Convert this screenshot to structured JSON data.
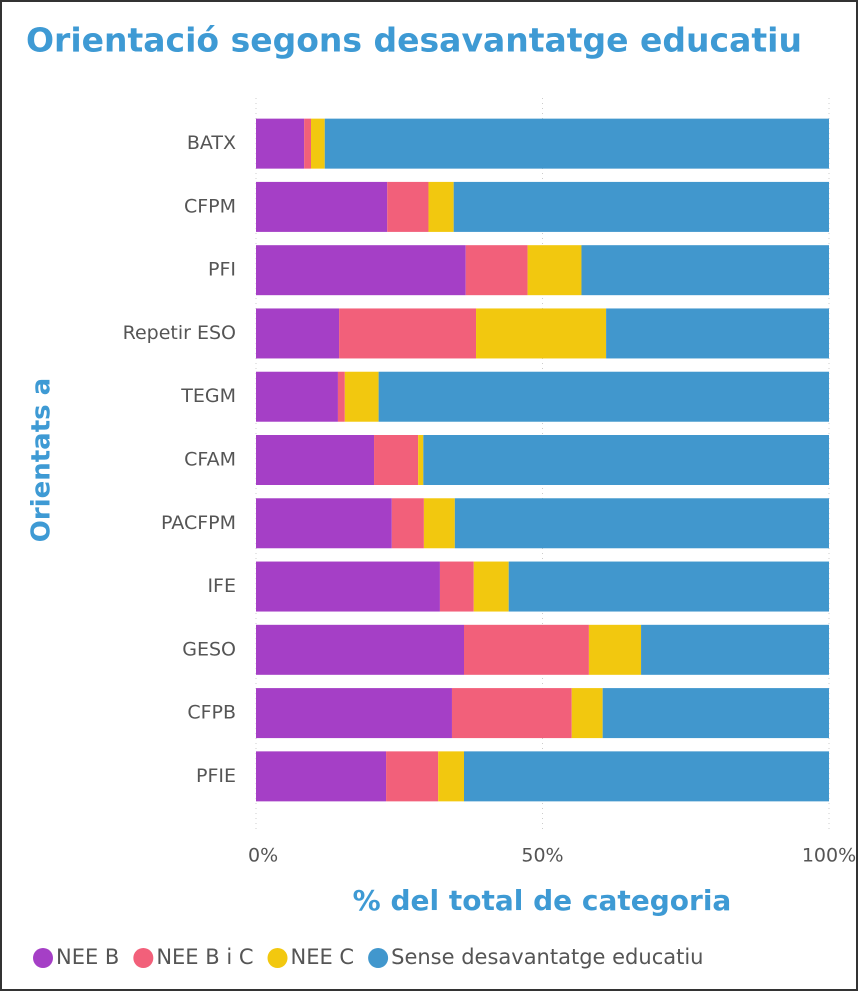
{
  "chart_data": {
    "type": "stacked-barh",
    "title": "Orientació segons desavantatge educatiu",
    "y_label": "Orientats a",
    "x_label": "% del total de categoria",
    "categories": [
      "BATX",
      "CFPM",
      "PFI",
      "Repetir ESO",
      "TEGM",
      "CFAM",
      "PACFPM",
      "IFE",
      "GESO",
      "CFPB",
      "PFIE"
    ],
    "series": [
      {
        "name": "NEE B",
        "color": "#a53fc6",
        "values": [
          8.4,
          22.9,
          36.6,
          14.5,
          14.3,
          20.6,
          23.7,
          32.1,
          36.3,
          34.2,
          22.7
        ]
      },
      {
        "name": "NEE B i C",
        "color": "#f2607a",
        "values": [
          1.2,
          7.2,
          10.8,
          23.9,
          1.2,
          7.7,
          5.6,
          5.9,
          21.8,
          20.9,
          9.1
        ]
      },
      {
        "name": "NEE C",
        "color": "#f2c80f",
        "values": [
          2.4,
          4.4,
          9.4,
          22.7,
          5.9,
          0.9,
          5.4,
          6.1,
          9.1,
          5.4,
          4.5
        ]
      },
      {
        "name": "Sense desavantatge educatiu",
        "color": "#4197cd",
        "values": [
          88.0,
          65.5,
          43.2,
          38.9,
          78.6,
          70.8,
          65.3,
          55.9,
          32.8,
          39.5,
          63.7
        ]
      }
    ],
    "xlim": [
      0,
      100
    ],
    "xticks": [
      {
        "value": 0,
        "label": "0%"
      },
      {
        "value": 50,
        "label": "50%"
      },
      {
        "value": 100,
        "label": "100%"
      }
    ],
    "grid": true
  }
}
